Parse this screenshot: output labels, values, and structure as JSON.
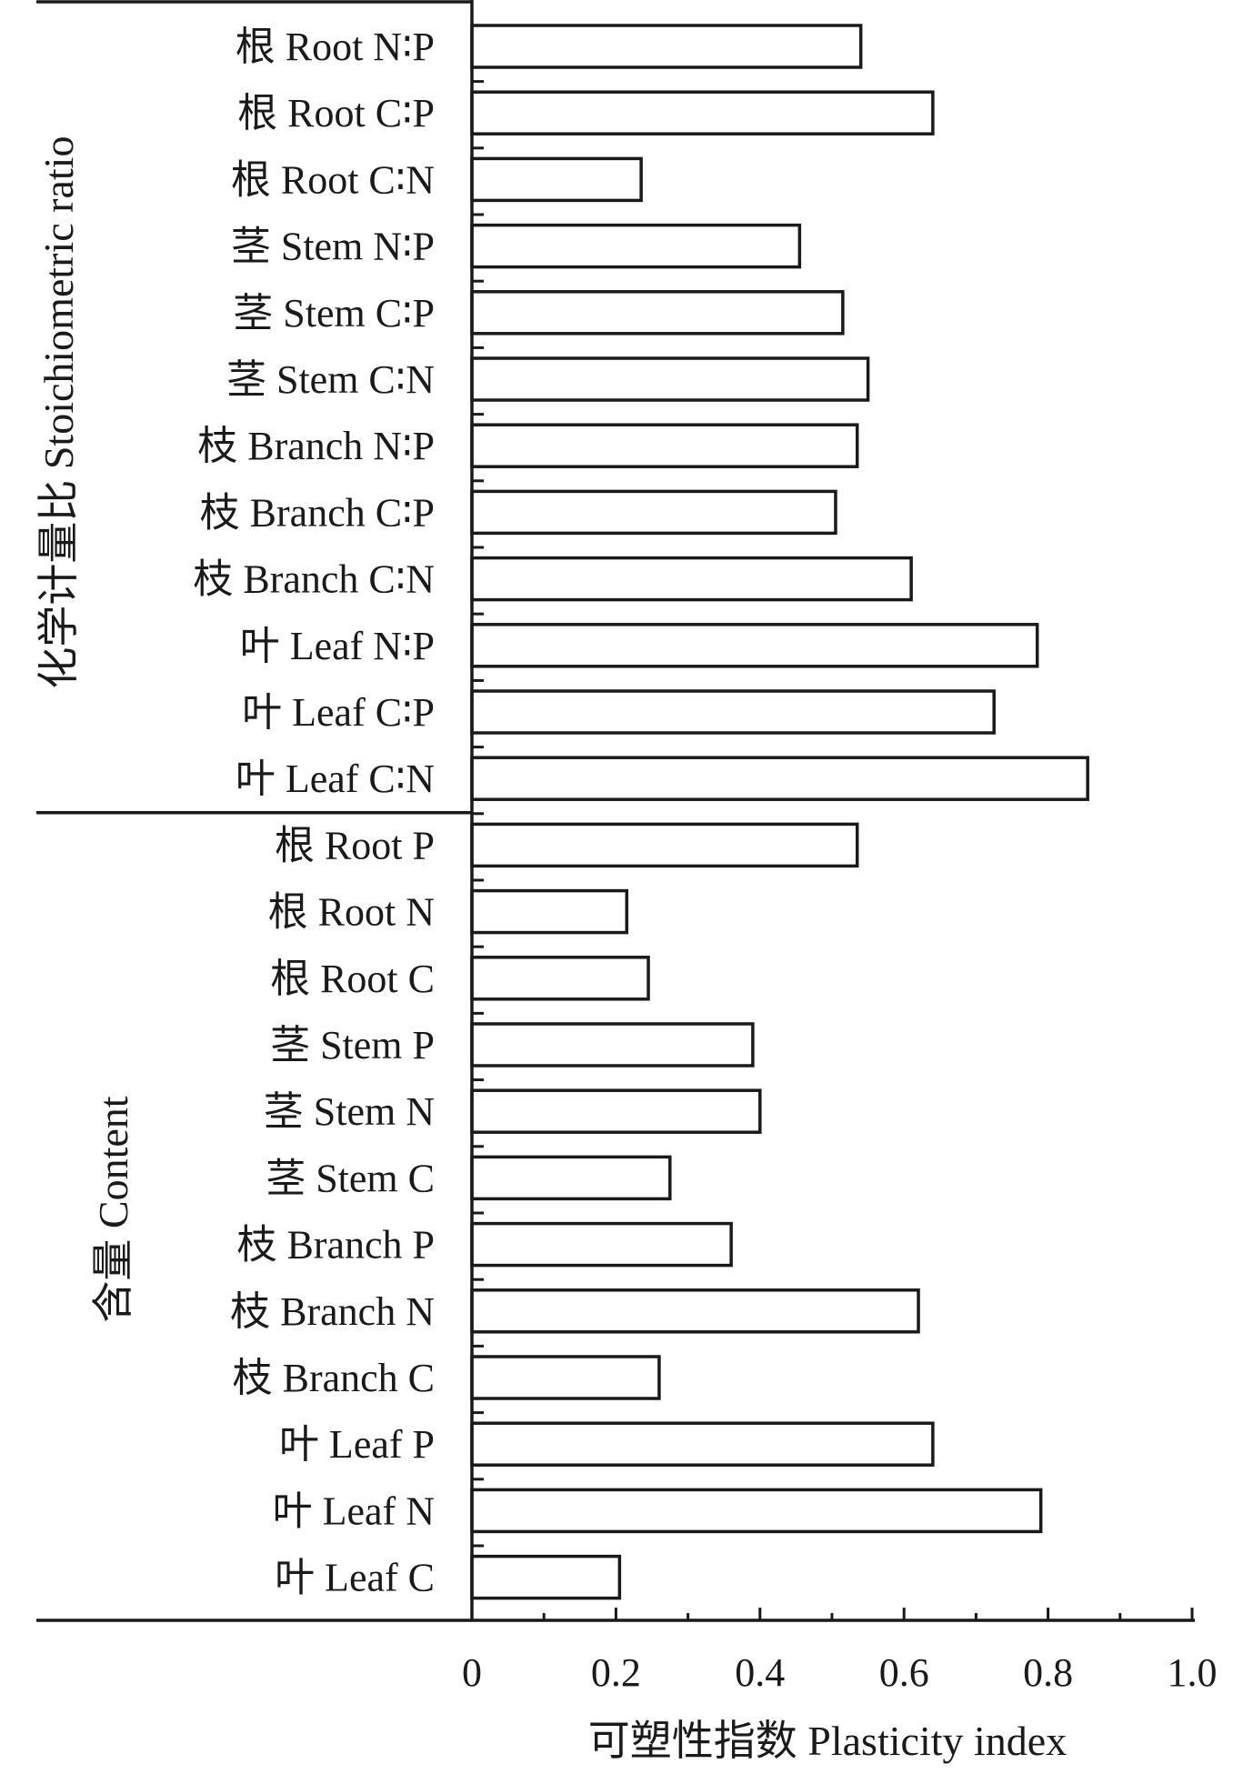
{
  "chart_data": {
    "type": "bar",
    "orientation": "horizontal",
    "xlabel": "可塑性指数 Plasticity index",
    "xlim": [
      0,
      1.0
    ],
    "xticks": [
      "0",
      "0.2",
      "0.4",
      "0.6",
      "0.8",
      "1.0"
    ],
    "xtick_values": [
      0,
      0.2,
      0.4,
      0.6,
      0.8,
      1.0
    ],
    "grid": false,
    "bar_fill": "#ffffff",
    "bar_stroke": "#1a1a1a",
    "groups": [
      {
        "name": "化学计量比 Stoichiometric ratio",
        "categories": [
          "根 Root N∶P",
          "根 Root C∶P",
          "根 Root C∶N",
          "茎 Stem N∶P",
          "茎 Stem C∶P",
          "茎 Stem C∶N",
          "枝 Branch N∶P",
          "枝 Branch C∶P",
          "枝 Branch C∶N",
          "叶 Leaf N∶P",
          "叶 Leaf C∶P",
          "叶 Leaf C∶N"
        ],
        "values": [
          0.54,
          0.64,
          0.235,
          0.455,
          0.515,
          0.55,
          0.535,
          0.505,
          0.61,
          0.785,
          0.725,
          0.855
        ]
      },
      {
        "name": "含量 Content",
        "categories": [
          "根 Root P",
          "根 Root N",
          "根 Root C",
          "茎 Stem P",
          "茎 Stem N",
          "茎 Stem C",
          "枝 Branch P",
          "枝 Branch N",
          "枝 Branch C",
          "叶 Leaf P",
          "叶 Leaf N",
          "叶 Leaf C"
        ],
        "values": [
          0.535,
          0.215,
          0.245,
          0.39,
          0.4,
          0.275,
          0.36,
          0.62,
          0.26,
          0.64,
          0.79,
          0.205
        ]
      }
    ]
  }
}
